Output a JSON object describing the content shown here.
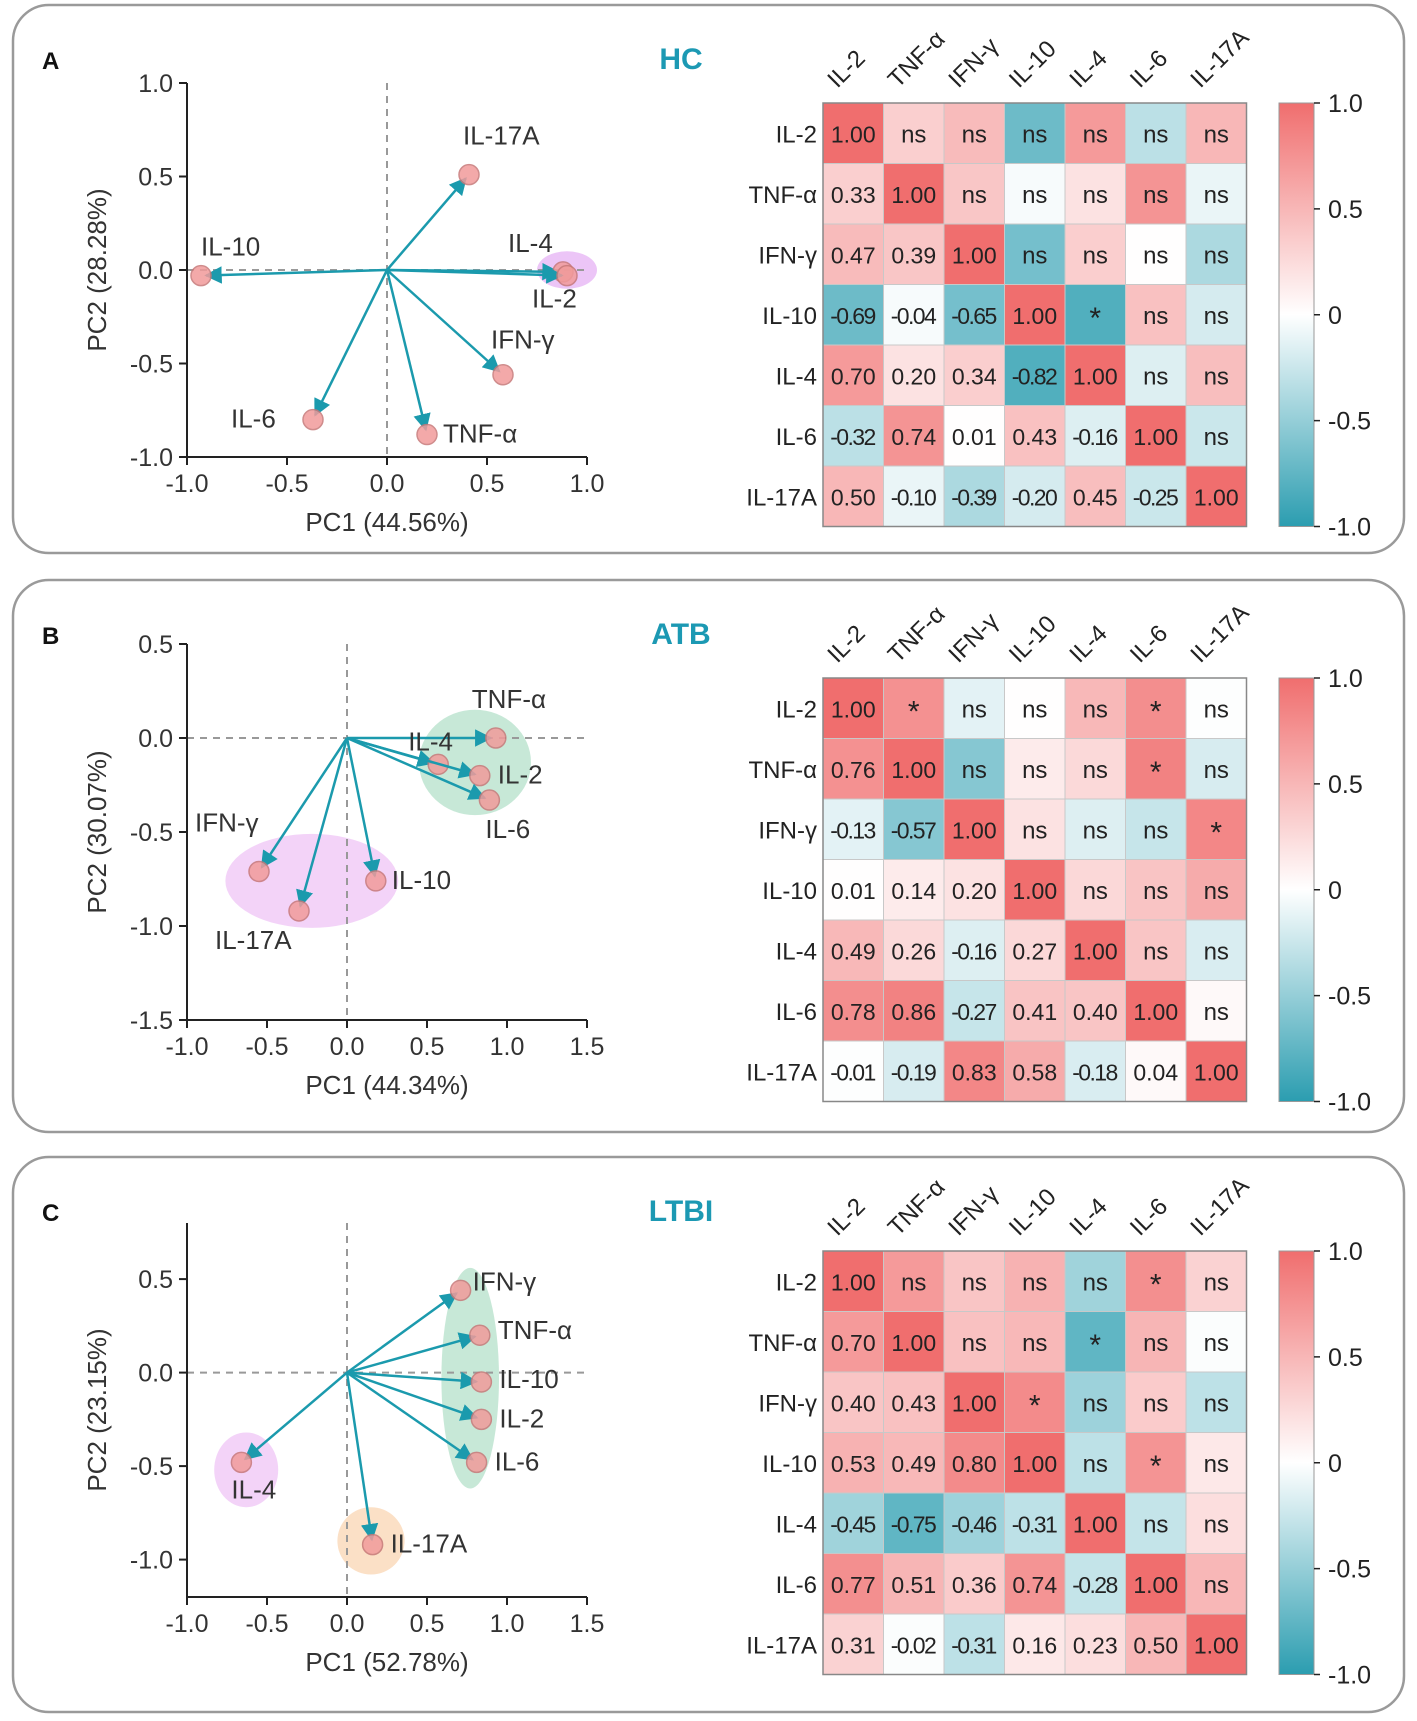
{
  "colors": {
    "arrow": "#1b9aad",
    "point_fill": "#f19b9b",
    "point_stroke": "#c77878",
    "title": "#1c99b3",
    "neg": "#2b9db0",
    "pos": "#f06e6e",
    "axis": "#222222",
    "text": "#333333",
    "dash": "#999999",
    "panel_border": "#9a9a9a"
  },
  "chart_data": [
    {
      "panel_label": "A",
      "title": "HC",
      "pca": {
        "type": "scatter",
        "xlabel": "PC1 (44.56%)",
        "ylabel": "PC2 (28.28%)",
        "xlim": [
          -1.0,
          1.0
        ],
        "ylim": [
          -1.0,
          1.0
        ],
        "xticks": [
          -1.0,
          -0.5,
          0.0,
          0.5,
          1.0
        ],
        "yticks": [
          -1.0,
          -0.5,
          0.0,
          0.5,
          1.0
        ],
        "xtick_labels": [
          "-1.0",
          "-0.5",
          "0.0",
          "0.5",
          "1.0"
        ],
        "ytick_labels": [
          "-1.0",
          "-0.5",
          "0.0",
          "0.5",
          "1.0"
        ],
        "points": [
          {
            "label": "IL-17A",
            "x": 0.41,
            "y": 0.51
          },
          {
            "label": "IL-10",
            "x": -0.93,
            "y": -0.03
          },
          {
            "label": "IL-4",
            "x": 0.88,
            "y": -0.01
          },
          {
            "label": "IL-2",
            "x": 0.9,
            "y": -0.03
          },
          {
            "label": "IFN-γ",
            "x": 0.58,
            "y": -0.56
          },
          {
            "label": "IL-6",
            "x": -0.37,
            "y": -0.8
          },
          {
            "label": "TNF-α",
            "x": 0.2,
            "y": -0.88
          }
        ],
        "groups": [
          {
            "color": "#e2a6f2",
            "cx": 0.9,
            "cy": 0.0,
            "rx": 0.15,
            "ry": 0.1
          }
        ]
      },
      "heatmap": {
        "type": "heatmap",
        "labels": [
          "IL-2",
          "TNF-α",
          "IFN-γ",
          "IL-10",
          "IL-4",
          "IL-6",
          "IL-17A"
        ],
        "values": [
          [
            1.0,
            0.33,
            0.47,
            -0.69,
            0.7,
            -0.32,
            0.5
          ],
          [
            0.33,
            1.0,
            0.39,
            -0.04,
            0.2,
            0.74,
            -0.1
          ],
          [
            0.47,
            0.39,
            1.0,
            -0.65,
            0.34,
            0.01,
            -0.39
          ],
          [
            -0.69,
            -0.04,
            -0.65,
            1.0,
            -0.82,
            0.43,
            -0.2
          ],
          [
            0.7,
            0.2,
            0.34,
            -0.82,
            1.0,
            -0.16,
            0.45
          ],
          [
            -0.32,
            0.74,
            0.01,
            0.43,
            -0.16,
            1.0,
            -0.25
          ],
          [
            0.5,
            -0.1,
            -0.39,
            -0.2,
            0.45,
            -0.25,
            1.0
          ]
        ],
        "text": [
          [
            "1.00",
            "ns",
            "ns",
            "ns",
            "ns",
            "ns",
            "ns"
          ],
          [
            "0.33",
            "1.00",
            "ns",
            "ns",
            "ns",
            "ns",
            "ns"
          ],
          [
            "0.47",
            "0.39",
            "1.00",
            "ns",
            "ns",
            "ns",
            "ns"
          ],
          [
            "-0.69",
            "-0.04",
            "-0.65",
            "1.00",
            "*",
            "ns",
            "ns"
          ],
          [
            "0.70",
            "0.20",
            "0.34",
            "-0.82",
            "1.00",
            "ns",
            "ns"
          ],
          [
            "-0.32",
            "0.74",
            "0.01",
            "0.43",
            "-0.16",
            "1.00",
            "ns"
          ],
          [
            "0.50",
            "-0.10",
            "-0.39",
            "-0.20",
            "0.45",
            "-0.25",
            "1.00"
          ]
        ],
        "colorbar_range": [
          -1.0,
          1.0
        ],
        "colorbar_ticks": [
          "1.0",
          "0.5",
          "0",
          "-0.5",
          "-1.0"
        ]
      }
    },
    {
      "panel_label": "B",
      "title": "ATB",
      "pca": {
        "type": "scatter",
        "xlabel": "PC1 (44.34%)",
        "ylabel": "PC2 (30.07%)",
        "xlim": [
          -1.0,
          1.5
        ],
        "ylim": [
          -1.5,
          0.5
        ],
        "xticks": [
          -1.0,
          -0.5,
          0.0,
          0.5,
          1.0,
          1.5
        ],
        "yticks": [
          -1.5,
          -1.0,
          -0.5,
          0.0,
          0.5
        ],
        "xtick_labels": [
          "-1.0",
          "-0.5",
          "0.0",
          "0.5",
          "1.0",
          "1.5"
        ],
        "ytick_labels": [
          "-1.5",
          "-1.0",
          "-0.5",
          "0.0",
          "0.5"
        ],
        "points": [
          {
            "label": "TNF-α",
            "x": 0.93,
            "y": 0.0
          },
          {
            "label": "IL-4",
            "x": 0.57,
            "y": -0.14
          },
          {
            "label": "IL-2",
            "x": 0.83,
            "y": -0.2
          },
          {
            "label": "IL-6",
            "x": 0.89,
            "y": -0.33
          },
          {
            "label": "IFN-γ",
            "x": -0.55,
            "y": -0.71
          },
          {
            "label": "IL-10",
            "x": 0.18,
            "y": -0.76
          },
          {
            "label": "IL-17A",
            "x": -0.3,
            "y": -0.92
          }
        ],
        "groups": [
          {
            "color": "#a9dcc2",
            "cx": 0.8,
            "cy": -0.13,
            "rx": 0.35,
            "ry": 0.28
          },
          {
            "color": "#ecbcf4",
            "cx": -0.22,
            "cy": -0.76,
            "rx": 0.54,
            "ry": 0.25
          }
        ]
      },
      "heatmap": {
        "type": "heatmap",
        "labels": [
          "IL-2",
          "TNF-α",
          "IFN-γ",
          "IL-10",
          "IL-4",
          "IL-6",
          "IL-17A"
        ],
        "values": [
          [
            1.0,
            0.76,
            -0.13,
            0.01,
            0.49,
            0.78,
            -0.01
          ],
          [
            0.76,
            1.0,
            -0.57,
            0.14,
            0.26,
            0.86,
            -0.19
          ],
          [
            -0.13,
            -0.57,
            1.0,
            0.2,
            -0.16,
            -0.27,
            0.83
          ],
          [
            0.01,
            0.14,
            0.2,
            1.0,
            0.27,
            0.41,
            0.58
          ],
          [
            0.49,
            0.26,
            -0.16,
            0.27,
            1.0,
            0.4,
            -0.18
          ],
          [
            0.78,
            0.86,
            -0.27,
            0.41,
            0.4,
            1.0,
            0.04
          ],
          [
            -0.01,
            -0.19,
            0.83,
            0.58,
            -0.18,
            0.04,
            1.0
          ]
        ],
        "text": [
          [
            "1.00",
            "*",
            "ns",
            "ns",
            "ns",
            "*",
            "ns"
          ],
          [
            "0.76",
            "1.00",
            "ns",
            "ns",
            "ns",
            "*",
            "ns"
          ],
          [
            "-0.13",
            "-0.57",
            "1.00",
            "ns",
            "ns",
            "ns",
            "*"
          ],
          [
            "0.01",
            "0.14",
            "0.20",
            "1.00",
            "ns",
            "ns",
            "ns"
          ],
          [
            "0.49",
            "0.26",
            "-0.16",
            "0.27",
            "1.00",
            "ns",
            "ns"
          ],
          [
            "0.78",
            "0.86",
            "-0.27",
            "0.41",
            "0.40",
            "1.00",
            "ns"
          ],
          [
            "-0.01",
            "-0.19",
            "0.83",
            "0.58",
            "-0.18",
            "0.04",
            "1.00"
          ]
        ],
        "colorbar_range": [
          -1.0,
          1.0
        ],
        "colorbar_ticks": [
          "1.0",
          "0.5",
          "0",
          "-0.5",
          "-1.0"
        ]
      }
    },
    {
      "panel_label": "C",
      "title": "LTBI",
      "pca": {
        "type": "scatter",
        "xlabel": "PC1 (52.78%)",
        "ylabel": "PC2 (23.15%)",
        "xlim": [
          -1.0,
          1.5
        ],
        "ylim": [
          -1.2,
          0.8
        ],
        "xticks": [
          -1.0,
          -0.5,
          0.0,
          0.5,
          1.0,
          1.5
        ],
        "yticks": [
          -1.0,
          -0.5,
          0.0,
          0.5
        ],
        "xtick_labels": [
          "-1.0",
          "-0.5",
          "0.0",
          "0.5",
          "1.0",
          "1.5"
        ],
        "ytick_labels": [
          "-1.0",
          "-0.5",
          "0.0",
          "0.5"
        ],
        "points": [
          {
            "label": "IFN-γ",
            "x": 0.71,
            "y": 0.44
          },
          {
            "label": "TNF-α",
            "x": 0.83,
            "y": 0.2
          },
          {
            "label": "IL-10",
            "x": 0.84,
            "y": -0.05
          },
          {
            "label": "IL-2",
            "x": 0.84,
            "y": -0.25
          },
          {
            "label": "IL-6",
            "x": 0.81,
            "y": -0.48
          },
          {
            "label": "IL-4",
            "x": -0.66,
            "y": -0.48
          },
          {
            "label": "IL-17A",
            "x": 0.16,
            "y": -0.92
          }
        ],
        "groups": [
          {
            "color": "#a9dcc2",
            "cx": 0.77,
            "cy": -0.03,
            "rx": 0.18,
            "ry": 0.59
          },
          {
            "color": "#ecbcf4",
            "cx": -0.63,
            "cy": -0.52,
            "rx": 0.2,
            "ry": 0.2
          },
          {
            "color": "#f9cfa8",
            "cx": 0.15,
            "cy": -0.9,
            "rx": 0.21,
            "ry": 0.18
          }
        ]
      },
      "heatmap": {
        "type": "heatmap",
        "labels": [
          "IL-2",
          "TNF-α",
          "IFN-γ",
          "IL-10",
          "IL-4",
          "IL-6",
          "IL-17A"
        ],
        "values": [
          [
            1.0,
            0.7,
            0.4,
            0.53,
            -0.45,
            0.77,
            0.31
          ],
          [
            0.7,
            1.0,
            0.43,
            0.49,
            -0.75,
            0.51,
            -0.02
          ],
          [
            0.4,
            0.43,
            1.0,
            0.8,
            -0.46,
            0.36,
            -0.31
          ],
          [
            0.53,
            0.49,
            0.8,
            1.0,
            -0.31,
            0.74,
            0.16
          ],
          [
            -0.45,
            -0.75,
            -0.46,
            -0.31,
            1.0,
            -0.28,
            0.23
          ],
          [
            0.77,
            0.51,
            0.36,
            0.74,
            -0.28,
            1.0,
            0.5
          ],
          [
            0.31,
            -0.02,
            -0.31,
            0.16,
            0.23,
            0.5,
            1.0
          ]
        ],
        "text": [
          [
            "1.00",
            "ns",
            "ns",
            "ns",
            "ns",
            "*",
            "ns"
          ],
          [
            "0.70",
            "1.00",
            "ns",
            "ns",
            "*",
            "ns",
            "ns"
          ],
          [
            "0.40",
            "0.43",
            "1.00",
            "*",
            "ns",
            "ns",
            "ns"
          ],
          [
            "0.53",
            "0.49",
            "0.80",
            "1.00",
            "ns",
            "*",
            "ns"
          ],
          [
            "-0.45",
            "-0.75",
            "-0.46",
            "-0.31",
            "1.00",
            "ns",
            "ns"
          ],
          [
            "0.77",
            "0.51",
            "0.36",
            "0.74",
            "-0.28",
            "1.00",
            "ns"
          ],
          [
            "0.31",
            "-0.02",
            "-0.31",
            "0.16",
            "0.23",
            "0.50",
            "1.00"
          ]
        ],
        "colorbar_range": [
          -1.0,
          1.0
        ],
        "colorbar_ticks": [
          "1.0",
          "0.5",
          "0",
          "-0.5",
          "-1.0"
        ]
      }
    }
  ]
}
